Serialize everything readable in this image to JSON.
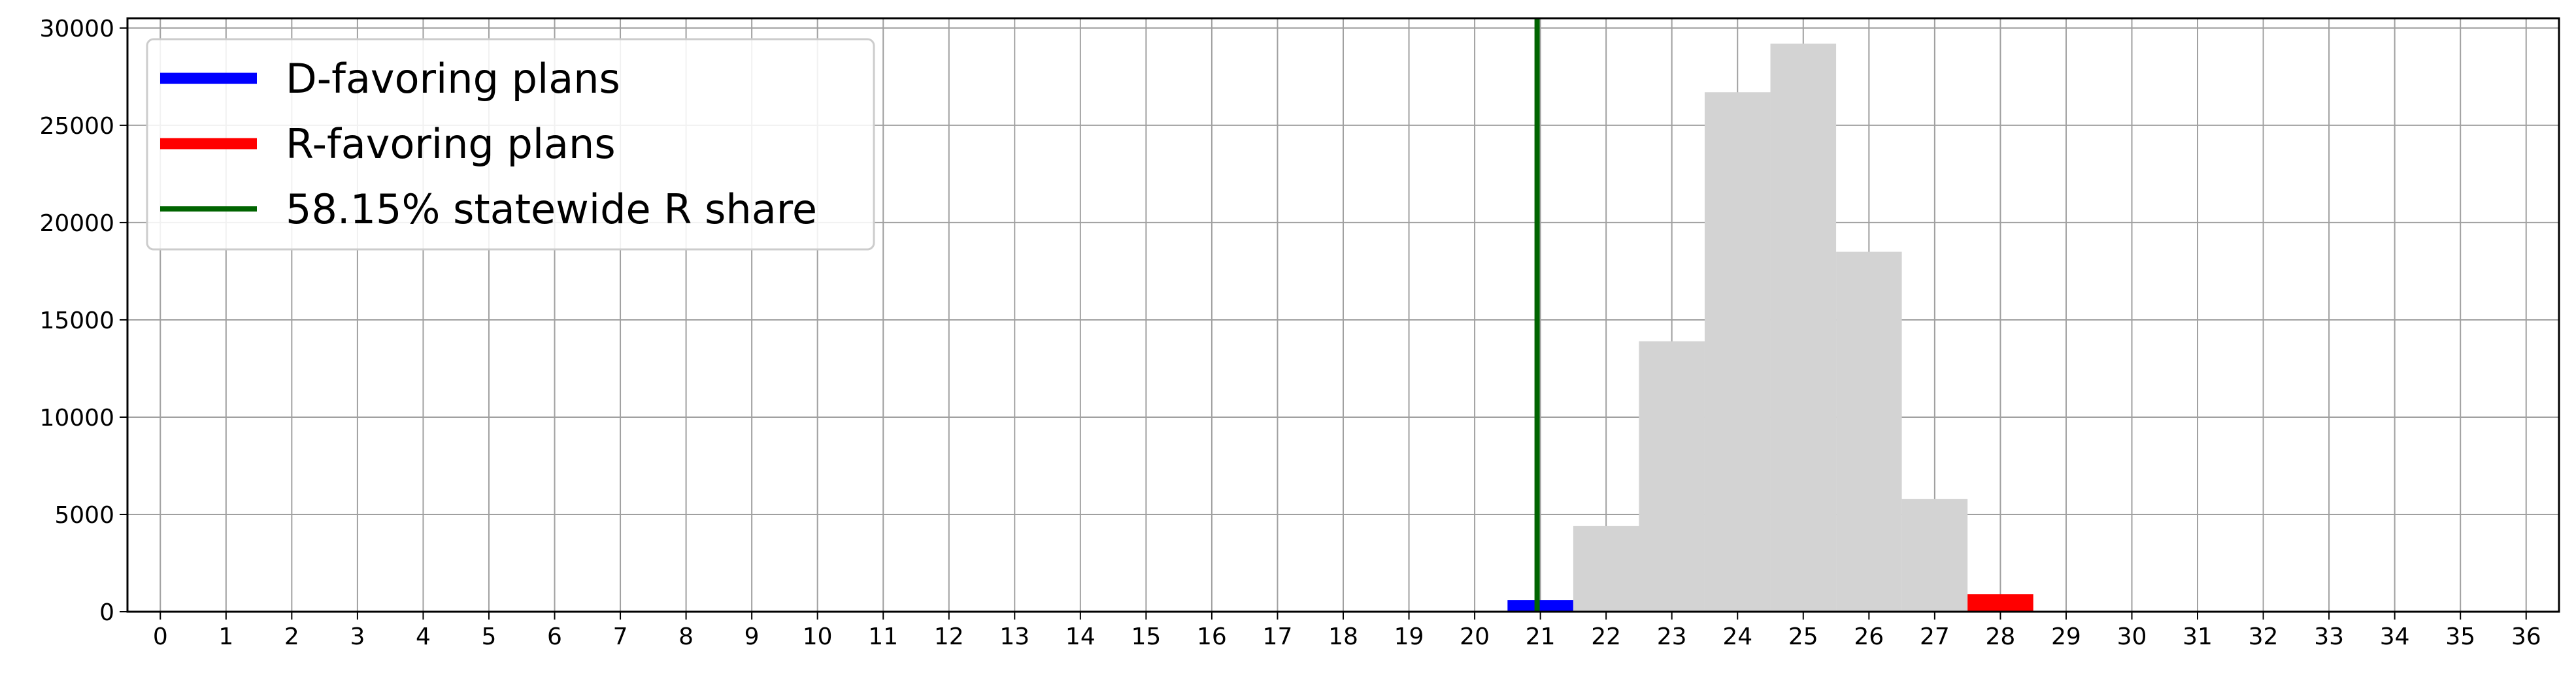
{
  "chart_data": {
    "type": "bar",
    "title": "",
    "xlabel": "",
    "ylabel": "",
    "x_categories": [
      "0",
      "1",
      "2",
      "3",
      "4",
      "5",
      "6",
      "7",
      "8",
      "9",
      "10",
      "11",
      "12",
      "13",
      "14",
      "15",
      "16",
      "17",
      "18",
      "19",
      "20",
      "21",
      "22",
      "23",
      "24",
      "25",
      "26",
      "27",
      "28",
      "29",
      "30",
      "31",
      "32",
      "33",
      "34",
      "35",
      "36"
    ],
    "xlim": [
      -0.5,
      36.5
    ],
    "ylim": [
      0,
      30500
    ],
    "y_ticks": [
      0,
      5000,
      10000,
      15000,
      20000,
      25000,
      30000
    ],
    "grid": true,
    "legend_position": "top-left",
    "series": [
      {
        "name": "",
        "color": "#d3d3d3",
        "bins": [
          {
            "x": 22,
            "value": 4400
          },
          {
            "x": 23,
            "value": 13900
          },
          {
            "x": 24,
            "value": 26700
          },
          {
            "x": 25,
            "value": 29200
          },
          {
            "x": 26,
            "value": 18500
          },
          {
            "x": 27,
            "value": 5800
          }
        ]
      },
      {
        "name": "D-favoring plans",
        "color": "#0000ff",
        "bins": [
          {
            "x": 21,
            "value": 600
          }
        ]
      },
      {
        "name": "R-favoring plans",
        "color": "#ff0000",
        "bins": [
          {
            "x": 28,
            "value": 900
          },
          {
            "x": 29,
            "value": 20
          }
        ]
      }
    ],
    "reference_line": {
      "name": "58.15% statewide R share",
      "x": 20.95,
      "color": "#006400"
    },
    "legend": [
      {
        "label": "D-favoring plans",
        "color": "#0000ff",
        "style": "thick"
      },
      {
        "label": "R-favoring plans",
        "color": "#ff0000",
        "style": "thick"
      },
      {
        "label": "58.15% statewide R share",
        "color": "#006400",
        "style": "thin"
      }
    ]
  }
}
